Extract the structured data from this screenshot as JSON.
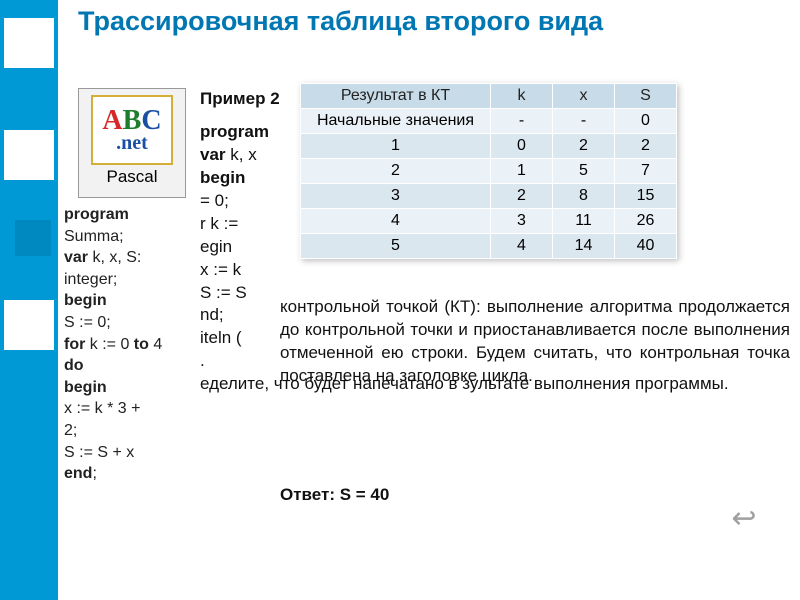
{
  "title": "Трассировочная таблица второго вида",
  "logo": {
    "letters": [
      "A",
      "B",
      "C"
    ],
    "dotnet": ".net",
    "caption": "Pascal"
  },
  "code_left": {
    "l1": "program",
    "l2": "Summa;",
    "l3": "   var",
    "l3b": " k, x, S:",
    "l4": "integer;",
    "l5": "begin",
    "l6": "    S := 0;",
    "l7": "    for",
    "l7b": " k := 0 ",
    "l7c": "to",
    "l7d": " 4",
    "l8": "do",
    "l9": "    begin",
    "l10": "      x := k * 3 +",
    "l10b": "2;",
    "l11": "      S := S + x",
    "l12": "    end",
    "l12b": ";"
  },
  "main": {
    "ex_label": "Пример 2",
    "code": {
      "c1": "program",
      "c2": "  var",
      "c2b": " k, x",
      "c3": "begin",
      "c4": "  = 0;",
      "c5": "  r k :=",
      "c6": "  egin",
      "c7": "   x := k",
      "c8": "   S := S",
      "c9": "  nd",
      "c9b": ";",
      "c10": "  iteln (",
      "c11": ".",
      "task": "еделите,   что   будет   напечатано   в зультате выполнения программы."
    },
    "para": "контрольной         точкой        (КТ): выполнение                    алгоритма продолжается    до    контрольной точки  и  приостанавливается  после выполнения отмеченной ею строки.     Будем  считать,  что  контрольная точка   поставлена   на   заголовке цикла.",
    "answer_label": "Ответ:",
    "answer_val": " S = 40"
  },
  "table": {
    "type": "table",
    "header_bg": "#c7dbe8",
    "row_bg": "#eaf2f8",
    "alt_bg": "#dbe7ef",
    "border": "#ffffff",
    "columns": [
      "Результат в КТ",
      "k",
      "x",
      "S"
    ],
    "rows": [
      [
        "Начальные значения",
        "-",
        "-",
        "0"
      ],
      [
        "1",
        "0",
        "2",
        "2"
      ],
      [
        "2",
        "1",
        "5",
        "7"
      ],
      [
        "3",
        "2",
        "8",
        "15"
      ],
      [
        "4",
        "3",
        "11",
        "26"
      ],
      [
        "5",
        "4",
        "14",
        "40"
      ]
    ]
  },
  "back_icon": "↩"
}
